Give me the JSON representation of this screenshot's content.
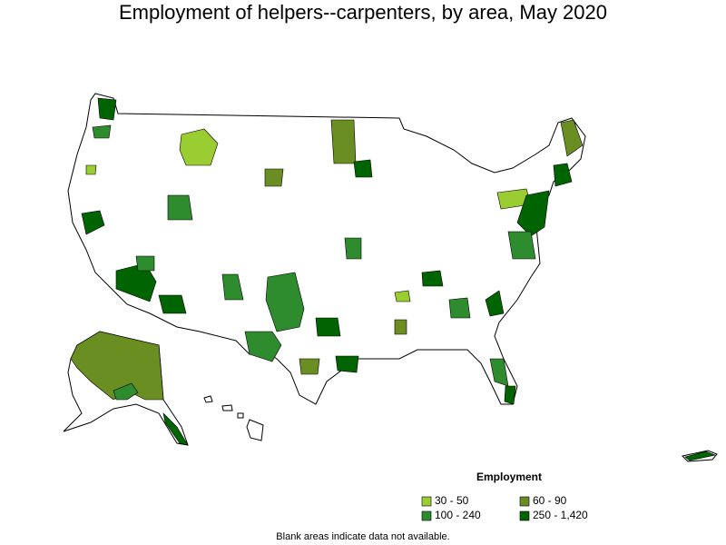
{
  "title": "Employment of helpers--carpenters, by area, May 2020",
  "legend": {
    "title": "Employment",
    "items": [
      {
        "label": "30 - 50",
        "color": "#9acd32"
      },
      {
        "label": "60 - 90",
        "color": "#6b8e23"
      },
      {
        "label": "100 - 240",
        "color": "#2e8b2e"
      },
      {
        "label": "250 - 1,420",
        "color": "#006400"
      }
    ]
  },
  "footnote": "Blank areas indicate data not available."
}
